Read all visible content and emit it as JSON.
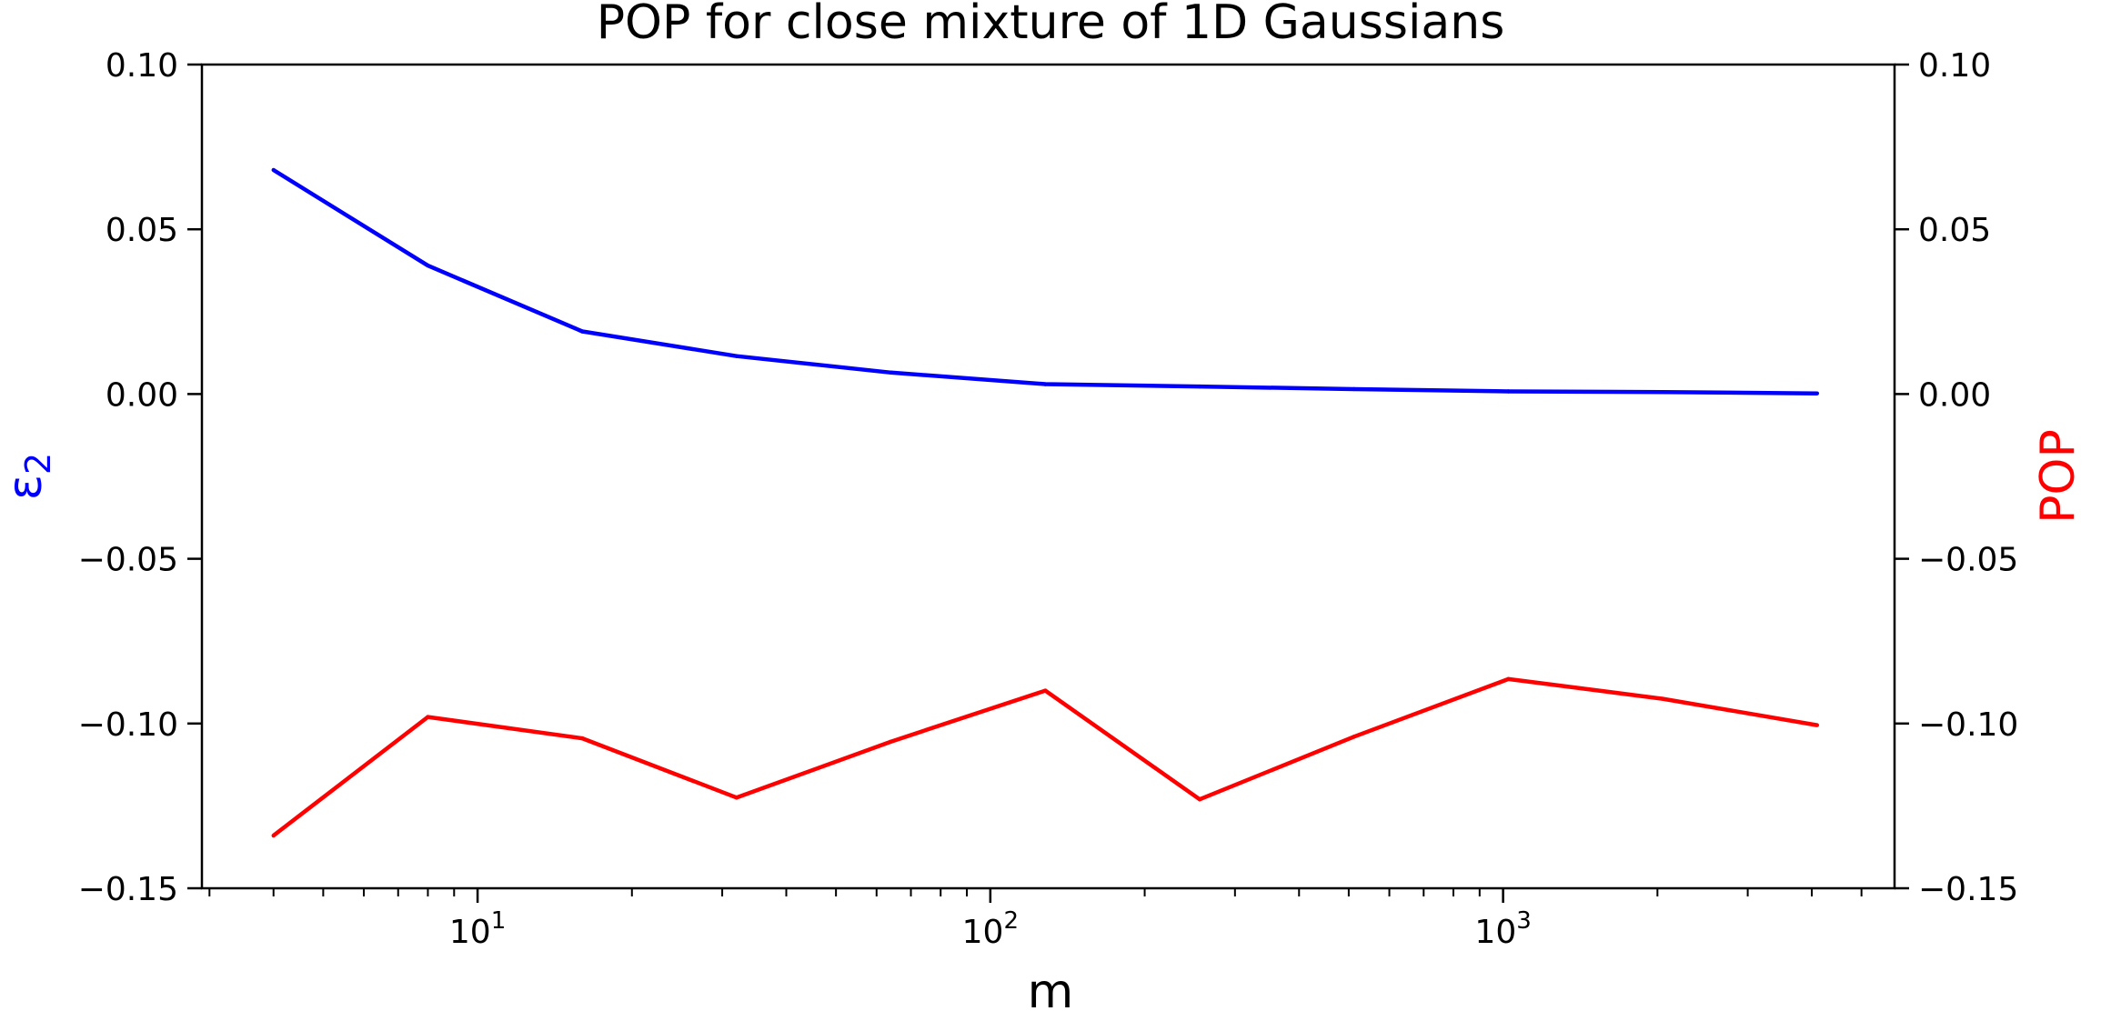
{
  "chart_data": {
    "type": "line",
    "title": "POP for close mixture of 1D Gaussians",
    "xlabel": "m",
    "ylabel_left": "ε",
    "ylabel_left_subscript": "2",
    "ylabel_right": "POP",
    "xscale": "log",
    "xlim": [
      2.9,
      5800
    ],
    "ylim": [
      -0.15,
      0.1
    ],
    "ylim_right": [
      -0.15,
      0.1
    ],
    "x_ticks": [
      {
        "value": 10,
        "base": "10",
        "exp": "1"
      },
      {
        "value": 100,
        "base": "10",
        "exp": "2"
      },
      {
        "value": 1000,
        "base": "10",
        "exp": "3"
      }
    ],
    "y_ticks": [
      "0.10",
      "0.05",
      "0.00",
      "−0.05",
      "−0.10",
      "−0.15"
    ],
    "y_tick_values": [
      0.1,
      0.05,
      0.0,
      -0.05,
      -0.1,
      -0.15
    ],
    "grid": false,
    "x": [
      4,
      8,
      16,
      32,
      64,
      128,
      256,
      512,
      1024,
      2048,
      4096
    ],
    "series": [
      {
        "axis": "left",
        "color": "#0000ff",
        "values": [
          0.068,
          0.039,
          0.019,
          0.0115,
          0.0065,
          0.003,
          0.0023,
          0.0015,
          0.0008,
          0.0006,
          0.0002
        ]
      },
      {
        "axis": "right",
        "color": "#ff0000",
        "values": [
          -0.134,
          -0.098,
          -0.1045,
          -0.1225,
          -0.1055,
          -0.09,
          -0.123,
          -0.104,
          -0.0865,
          -0.0925,
          -0.1005
        ]
      }
    ]
  }
}
